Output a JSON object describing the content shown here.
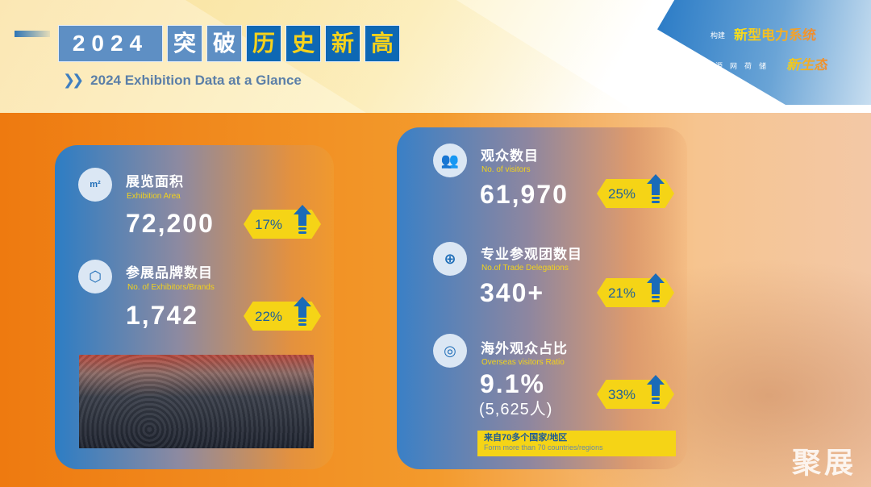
{
  "header": {
    "title_year": "2024",
    "title_chars": [
      "突",
      "破",
      "历",
      "史",
      "新",
      "高"
    ],
    "subtitle": "2024 Exhibition Data at a Glance"
  },
  "corner": {
    "line1_small": "构建",
    "line1_big": "新型电力系统",
    "line2_small": "源网荷储",
    "line2_big": "新生态"
  },
  "stats": [
    {
      "icon": "house-m2-icon",
      "icon_text": "m²",
      "cn": "展览面积",
      "en": "Exhibition Area",
      "value": "72,200",
      "growth": "17%"
    },
    {
      "icon": "box-icon",
      "cn": "参展品牌数目",
      "en": "No. of Exhibitors/Brands",
      "value": "1,742",
      "growth": "22%"
    },
    {
      "icon": "visitors-icon",
      "cn": "观众数目",
      "en": "No. of visitors",
      "value": "61,970",
      "growth": "25%"
    },
    {
      "icon": "delegation-icon",
      "cn": "专业参观团数目",
      "en": "No.of Trade Delegations",
      "value": "340+",
      "growth": "21%"
    },
    {
      "icon": "globe-icon",
      "cn": "海外观众占比",
      "en": "Overseas visitors Ratio",
      "value": "9.1%",
      "value_sub": "(5,625人)",
      "growth": "33%"
    }
  ],
  "note": {
    "cn": "来自70多个国家/地区",
    "en": "Form more than 70 countries/regions"
  },
  "watermark": "聚展",
  "colors": {
    "accent_blue": "#0e68b4",
    "accent_yellow": "#f5d416",
    "orange": "#f08a1e"
  }
}
